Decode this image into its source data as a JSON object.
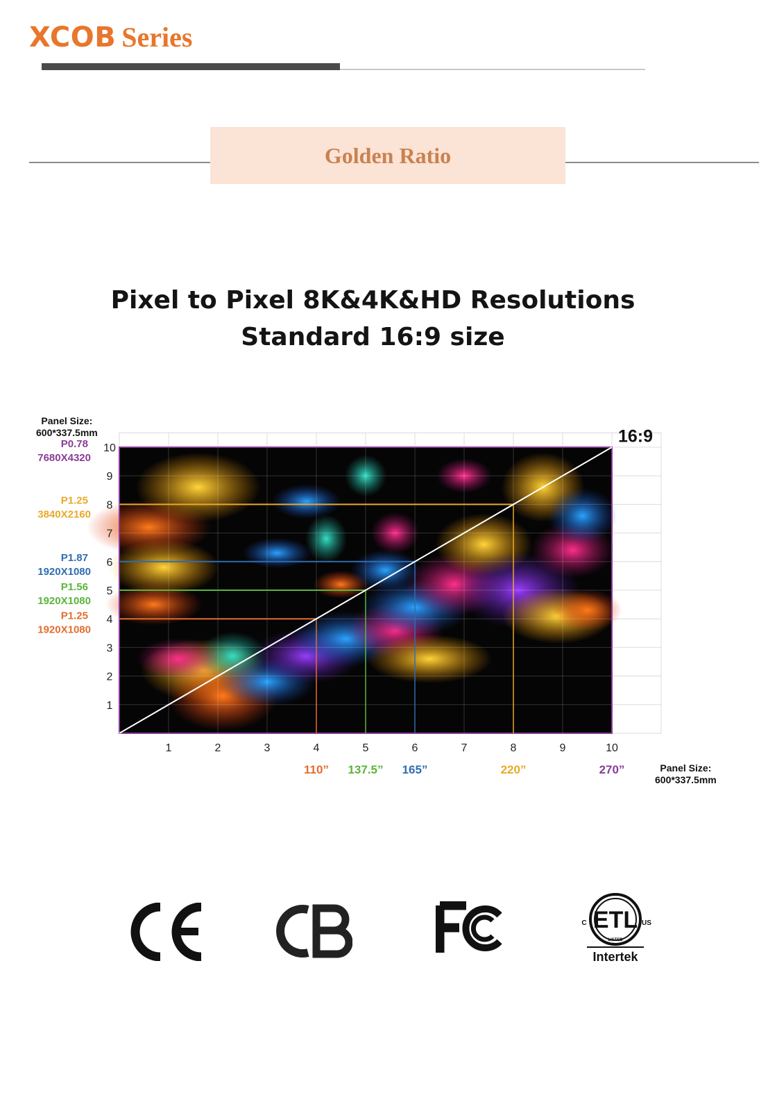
{
  "header": {
    "brand_main": "XCOB",
    "brand_rest": "Series"
  },
  "ribbon": {
    "label": "Golden Ratio"
  },
  "heading": {
    "line1": "Pixel to Pixel 8K&4K&HD Resolutions",
    "line2": "Standard 16:9 size"
  },
  "panel_size": {
    "label": "Panel Size:",
    "value": "600*337.5mm"
  },
  "chart_data": {
    "type": "area",
    "ratio_label": "16:9",
    "x_ticks": [
      1,
      2,
      3,
      4,
      5,
      6,
      7,
      8,
      9,
      10
    ],
    "y_ticks": [
      1,
      2,
      3,
      4,
      5,
      6,
      7,
      8,
      9,
      10
    ],
    "xlim": [
      0,
      11
    ],
    "ylim": [
      0,
      10.5
    ],
    "grid": true,
    "diagonal": {
      "from": [
        0,
        0
      ],
      "to": [
        10,
        10
      ]
    },
    "configurations": [
      {
        "pitch": "P0.78",
        "resolution": "7680X4320",
        "cols": 10,
        "rows": 10,
        "diagonal": "270”",
        "color": "#8a3d99"
      },
      {
        "pitch": "P1.25",
        "resolution": "3840X2160",
        "cols": 8,
        "rows": 8,
        "diagonal": "220”",
        "color": "#e9a92a"
      },
      {
        "pitch": "P1.87",
        "resolution": "1920X1080",
        "cols": 6,
        "rows": 6,
        "diagonal": "165”",
        "color": "#2f6db0"
      },
      {
        "pitch": "P1.56",
        "resolution": "1920X1080",
        "cols": 5,
        "rows": 5,
        "diagonal": "137.5”",
        "color": "#5bb53c"
      },
      {
        "pitch": "P1.25",
        "resolution": "1920X1080",
        "cols": 4,
        "rows": 4,
        "diagonal": "110”",
        "color": "#e36d2f"
      }
    ]
  },
  "certifications": [
    {
      "name": "CE",
      "text": "CE"
    },
    {
      "name": "CB",
      "text": "CB"
    },
    {
      "name": "FCC",
      "text": "FC"
    },
    {
      "name": "ETL",
      "text": "ETL",
      "left": "C",
      "right": "US",
      "listed": "LISTED",
      "brand": "Intertek"
    }
  ]
}
